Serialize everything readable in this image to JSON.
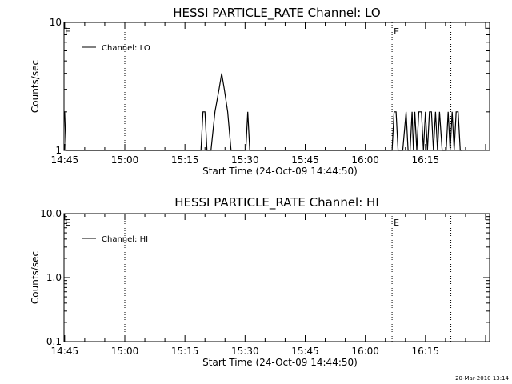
{
  "footer": {
    "timestamp": "20-Mar-2010 13:14"
  },
  "chart_data": [
    {
      "type": "line",
      "title": "HESSI PARTICLE_RATE Channel: LO",
      "xlabel": "Start Time (24-Oct-09 14:44:50)",
      "ylabel": "Counts/sec",
      "yscale": "log",
      "xlim": [
        "14:44:50",
        "16:31:00"
      ],
      "ylim": [
        1,
        10
      ],
      "xticks": [
        "14:45",
        "15:00",
        "15:15",
        "15:30",
        "15:45",
        "16:00",
        "16:15"
      ],
      "yticks": [
        {
          "value": 1,
          "label": "1"
        },
        {
          "value": 10,
          "label": "10"
        }
      ],
      "legend": {
        "position": "top-left"
      },
      "series": [
        {
          "name": "Channel: LO",
          "x": [
            "14:44:50",
            "14:45:00",
            "14:45:20",
            "15:19:00",
            "15:19:30",
            "15:20:00",
            "15:20:30",
            "15:21:30",
            "15:22:30",
            "15:23:30",
            "15:24:10",
            "15:24:50",
            "15:25:40",
            "15:26:30",
            "15:27:20",
            "15:28:10",
            "15:30:10",
            "15:30:40",
            "15:31:10",
            "16:06:40",
            "16:07:10",
            "16:07:40",
            "16:08:10",
            "16:08:40",
            "16:09:20",
            "16:10:10",
            "16:10:40",
            "16:11:10",
            "16:11:40",
            "16:12:00",
            "16:12:20",
            "16:12:50",
            "16:13:20",
            "16:14:00",
            "16:14:30",
            "16:15:00",
            "16:15:30",
            "16:16:00",
            "16:16:30",
            "16:17:00",
            "16:17:30",
            "16:18:00",
            "16:18:30",
            "16:19:10",
            "16:19:40",
            "16:20:10",
            "16:20:40",
            "16:21:10",
            "16:21:40",
            "16:22:10",
            "16:22:40",
            "16:23:10",
            "16:23:40",
            "16:24:10"
          ],
          "y": [
            2,
            2,
            1,
            1,
            2,
            2,
            1,
            1,
            2,
            3,
            4,
            3,
            2,
            1,
            1,
            1,
            1,
            2,
            1,
            1,
            2,
            2,
            1,
            1,
            1,
            2,
            1,
            1,
            2,
            1,
            2,
            1,
            2,
            2,
            1,
            2,
            1,
            2,
            2,
            1,
            2,
            1,
            2,
            1,
            1,
            1,
            2,
            1,
            2,
            1,
            2,
            2,
            1,
            1
          ]
        }
      ],
      "markers": [
        {
          "time": "15:00:00",
          "label": ""
        },
        {
          "time": "16:06:40",
          "label": "E"
        },
        {
          "time": "16:21:20",
          "label": ""
        }
      ],
      "corner_label": "E"
    },
    {
      "type": "line",
      "title": "HESSI PARTICLE_RATE Channel: HI",
      "xlabel": "Start Time (24-Oct-09 14:44:50)",
      "ylabel": "Counts/sec",
      "yscale": "log",
      "xlim": [
        "14:44:50",
        "16:31:00"
      ],
      "ylim": [
        0.1,
        10
      ],
      "xticks": [
        "14:45",
        "15:00",
        "15:15",
        "15:30",
        "15:45",
        "16:00",
        "16:15"
      ],
      "yticks": [
        {
          "value": 0.1,
          "label": "0.1"
        },
        {
          "value": 1,
          "label": "1.0"
        },
        {
          "value": 10,
          "label": "10.0"
        }
      ],
      "legend": {
        "position": "top-left"
      },
      "series": [
        {
          "name": "Channel: HI",
          "x": [],
          "y": []
        }
      ],
      "markers": [
        {
          "time": "15:00:00",
          "label": ""
        },
        {
          "time": "16:06:40",
          "label": "E"
        },
        {
          "time": "16:21:20",
          "label": ""
        }
      ],
      "corner_label": "E"
    }
  ]
}
